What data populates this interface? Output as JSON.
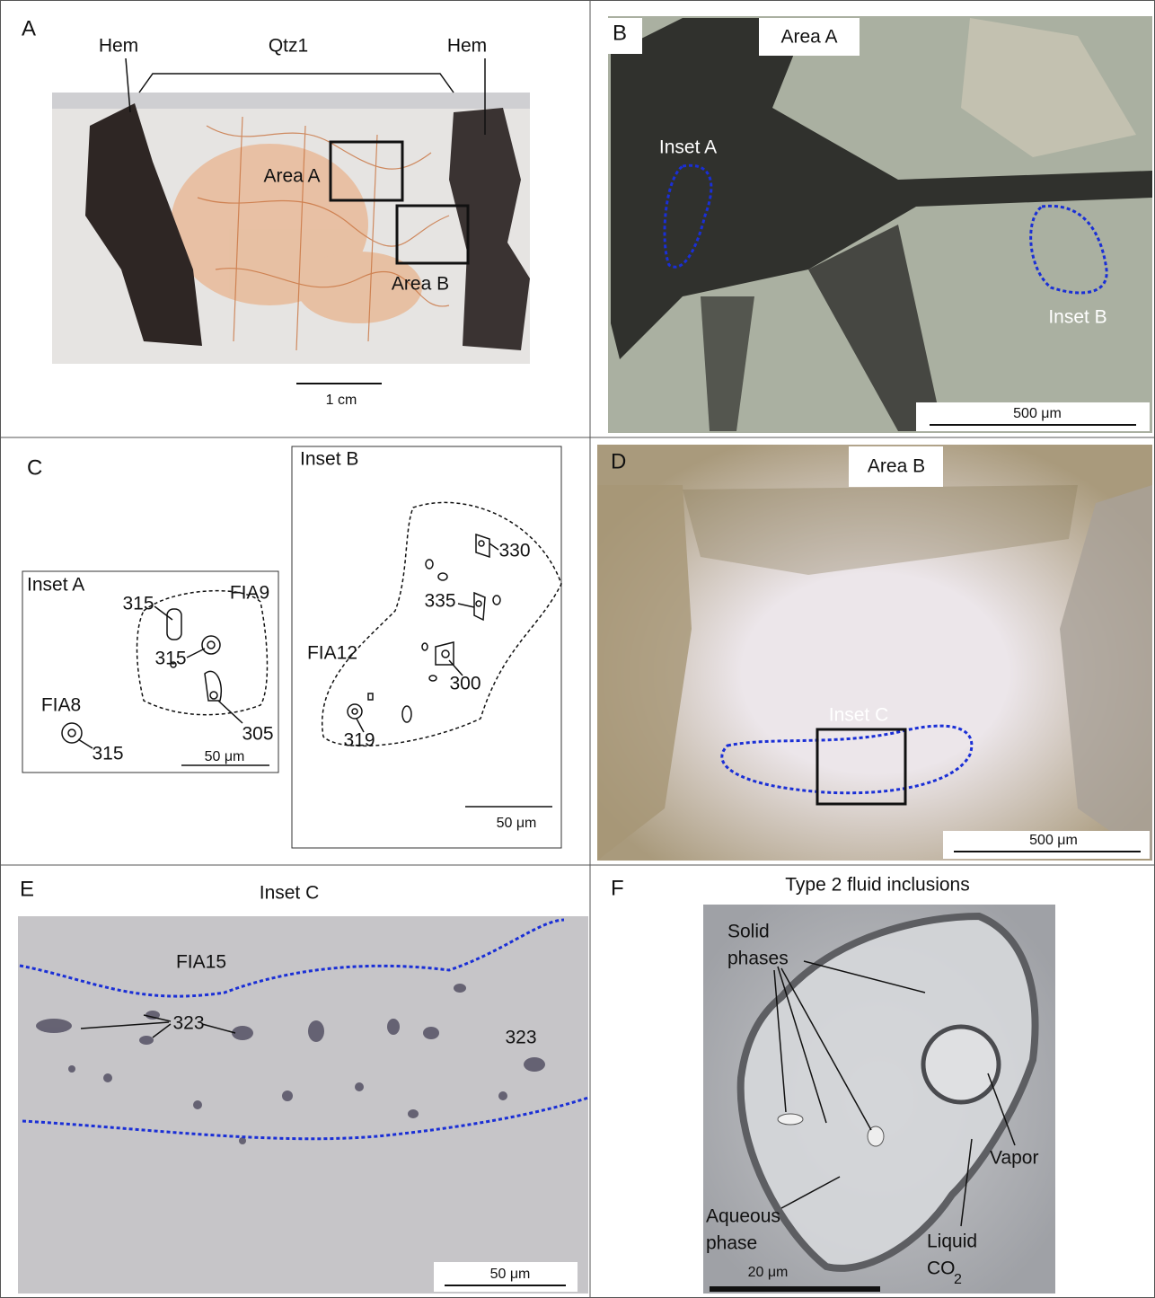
{
  "panels": {
    "a": {
      "letter": "A",
      "labels": {
        "hem_left": "Hem",
        "qtz": "Qtz1",
        "hem_right": "Hem",
        "area_a": "Area A",
        "area_b": "Area B",
        "scale": "1 cm"
      }
    },
    "b": {
      "letter": "B",
      "labels": {
        "title": "Area A",
        "inset_a": "Inset A",
        "inset_b": "Inset B",
        "scale": "500 μm"
      }
    },
    "c": {
      "letter": "C",
      "inset_a": {
        "title": "Inset A",
        "fia9": "FIA9",
        "t1": "315",
        "t2": "315",
        "t3": "305",
        "fia8": "FIA8",
        "t4": "315",
        "scale": "50 μm"
      },
      "inset_b": {
        "title": "Inset B",
        "t1": "330",
        "t2": "335",
        "fia12": "FIA12",
        "t3": "300",
        "t4": "319",
        "scale": "50 μm"
      }
    },
    "d": {
      "letter": "D",
      "labels": {
        "title": "Area B",
        "inset_c": "Inset C",
        "scale": "500 μm"
      }
    },
    "e": {
      "letter": "E",
      "labels": {
        "title": "Inset C",
        "fia15": "FIA15",
        "t1": "323",
        "t2": "323",
        "scale": "50 μm"
      }
    },
    "f": {
      "letter": "F",
      "labels": {
        "title": "Type 2 fluid inclusions",
        "solid": [
          "Solid",
          "phases"
        ],
        "vapor": "Vapor",
        "aqueous": [
          "Aqueous",
          "phase"
        ],
        "liquid": "Liquid",
        "co": "CO",
        "sub": "2",
        "scale": "20 μm"
      }
    }
  }
}
